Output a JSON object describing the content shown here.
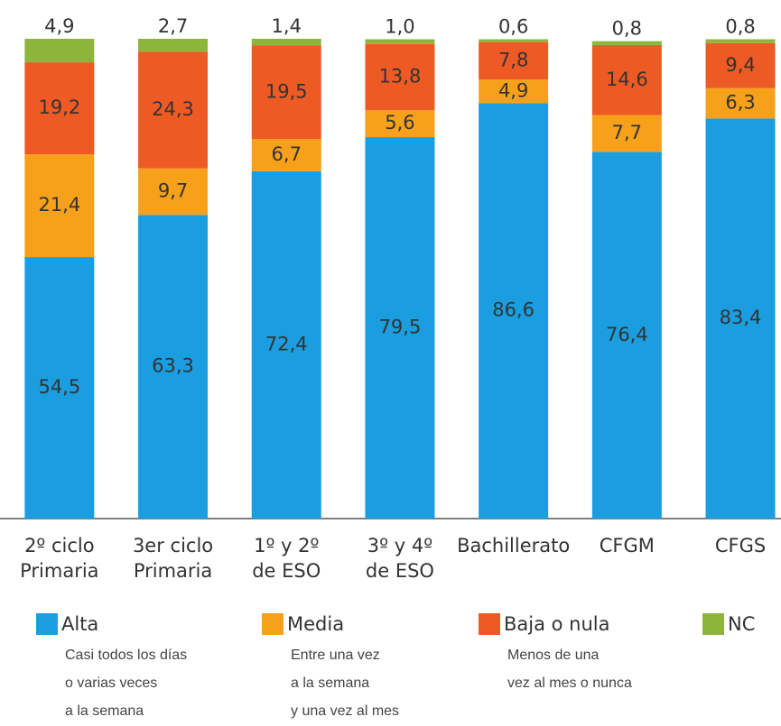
{
  "chart_data": {
    "type": "stacked_bar",
    "categories": [
      [
        "2º ciclo",
        "Primaria"
      ],
      [
        "3er ciclo",
        "Primaria"
      ],
      [
        "1º y 2º",
        "de ESO"
      ],
      [
        "3º y 4º",
        "de ESO"
      ],
      [
        "Bachillerato"
      ],
      [
        "CFGM"
      ],
      [
        "CFGS"
      ]
    ],
    "ylim": [
      0,
      100
    ],
    "series": [
      {
        "name": "Alta",
        "color": "#1a9ee0",
        "label_color": "#ffffff",
        "description": [
          "Casi todos los días",
          "o varias veces",
          "a la semana"
        ],
        "values": [
          54.5,
          63.3,
          72.4,
          79.5,
          86.6,
          76.4,
          83.4
        ],
        "value_labels": [
          "54,5",
          "63,3",
          "72,4",
          "79,5",
          "86,6",
          "76,4",
          "83,4"
        ]
      },
      {
        "name": "Media",
        "color": "#f7a11a",
        "label_color": "#333333",
        "description": [
          "Entre una vez",
          "a la semana",
          "y una vez al mes"
        ],
        "values": [
          21.4,
          9.7,
          6.7,
          5.6,
          4.9,
          7.7,
          6.3
        ],
        "value_labels": [
          "21,4",
          "9,7",
          "6,7",
          "5,6",
          "4,9",
          "7,7",
          "6,3"
        ]
      },
      {
        "name": "Baja o nula",
        "color": "#ee5a24",
        "label_color": "#ffffff",
        "description": [
          "Menos de una",
          "vez al mes o nunca"
        ],
        "values": [
          19.2,
          24.3,
          19.5,
          13.8,
          7.8,
          14.6,
          9.4
        ],
        "value_labels": [
          "19,2",
          "24,3",
          "19,5",
          "13,8",
          "7,8",
          "14,6",
          "9,4"
        ]
      },
      {
        "name": "NC",
        "color": "#8db53c",
        "label_color": "#333333",
        "description": [],
        "values": [
          4.9,
          2.7,
          1.4,
          1.0,
          0.6,
          0.8,
          0.8
        ],
        "value_labels": [
          "4,9",
          "2,7",
          "1,4",
          "1,0",
          "0,6",
          "0,8",
          "0,8"
        ]
      }
    ]
  }
}
